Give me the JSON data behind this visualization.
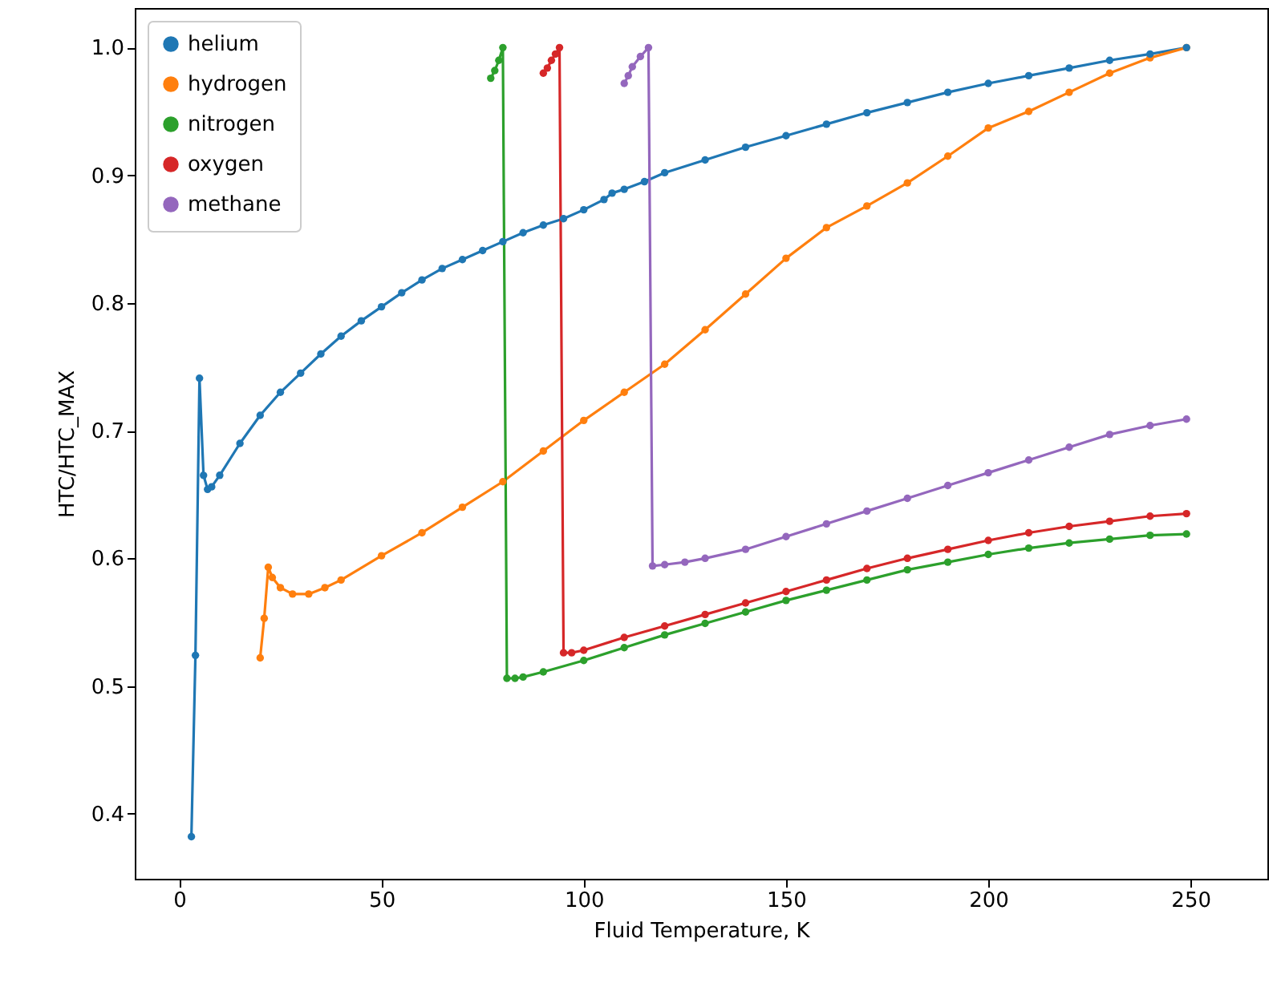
{
  "chart_data": {
    "type": "line",
    "xlabel": "Fluid Temperature, K",
    "ylabel": "HTC/HTC_MAX",
    "xlim": [
      -11,
      269
    ],
    "xticks": [
      0,
      50,
      100,
      150,
      200,
      250
    ],
    "ylim": [
      0.349,
      1.031
    ],
    "yticks": [
      0.4,
      0.5,
      0.6,
      0.7,
      0.8,
      0.9,
      {
        "value": 1,
        "label": "1.0"
      }
    ],
    "grid": false,
    "legend": "top left",
    "marker": "circle",
    "line_style": "solid",
    "series": [
      {
        "name": "helium",
        "color": "#1f77b4",
        "x": [
          3,
          4,
          5,
          6,
          7,
          8,
          10,
          15,
          20,
          25,
          30,
          35,
          40,
          45,
          50,
          55,
          60,
          65,
          70,
          75,
          80,
          85,
          90,
          95,
          100,
          105,
          107,
          110,
          115,
          120,
          130,
          140,
          150,
          160,
          170,
          180,
          190,
          200,
          210,
          220,
          230,
          240,
          249
        ],
        "values": [
          0.382,
          0.524,
          0.741,
          0.665,
          0.654,
          0.656,
          0.665,
          0.69,
          0.712,
          0.73,
          0.745,
          0.76,
          0.774,
          0.786,
          0.797,
          0.808,
          0.818,
          0.827,
          0.834,
          0.841,
          0.848,
          0.855,
          0.861,
          0.866,
          0.873,
          0.881,
          0.886,
          0.889,
          0.895,
          0.902,
          0.912,
          0.922,
          0.931,
          0.94,
          0.949,
          0.957,
          0.965,
          0.972,
          0.978,
          0.984,
          0.99,
          0.995,
          1.0
        ]
      },
      {
        "name": "hydrogen",
        "color": "#ff7f0e",
        "x": [
          20,
          21,
          22,
          23,
          25,
          28,
          32,
          36,
          40,
          50,
          60,
          70,
          80,
          90,
          100,
          110,
          120,
          130,
          140,
          150,
          160,
          170,
          180,
          190,
          200,
          210,
          220,
          230,
          240,
          249
        ],
        "values": [
          0.522,
          0.553,
          0.593,
          0.585,
          0.577,
          0.572,
          0.572,
          0.577,
          0.583,
          0.602,
          0.62,
          0.64,
          0.66,
          0.684,
          0.708,
          0.73,
          0.752,
          0.779,
          0.807,
          0.835,
          0.859,
          0.876,
          0.894,
          0.915,
          0.937,
          0.95,
          0.965,
          0.98,
          0.992,
          1.0
        ]
      },
      {
        "name": "nitrogen",
        "color": "#2ca02c",
        "x": [
          77,
          78,
          79,
          80,
          81,
          83,
          85,
          90,
          100,
          110,
          120,
          130,
          140,
          150,
          160,
          170,
          180,
          190,
          200,
          210,
          220,
          230,
          240,
          249
        ],
        "values": [
          0.976,
          0.982,
          0.99,
          1.0,
          0.506,
          0.506,
          0.507,
          0.511,
          0.52,
          0.53,
          0.54,
          0.549,
          0.558,
          0.567,
          0.575,
          0.583,
          0.591,
          0.597,
          0.603,
          0.608,
          0.612,
          0.615,
          0.618,
          0.619
        ]
      },
      {
        "name": "oxygen",
        "color": "#d62728",
        "x": [
          90,
          91,
          92,
          93,
          94,
          95,
          97,
          100,
          110,
          120,
          130,
          140,
          150,
          160,
          170,
          180,
          190,
          200,
          210,
          220,
          230,
          240,
          249
        ],
        "values": [
          0.98,
          0.984,
          0.99,
          0.995,
          1.0,
          0.526,
          0.526,
          0.528,
          0.538,
          0.547,
          0.556,
          0.565,
          0.574,
          0.583,
          0.592,
          0.6,
          0.607,
          0.614,
          0.62,
          0.625,
          0.629,
          0.633,
          0.635
        ]
      },
      {
        "name": "methane",
        "color": "#9467bd",
        "x": [
          110,
          111,
          112,
          114,
          116,
          117,
          120,
          125,
          130,
          140,
          150,
          160,
          170,
          180,
          190,
          200,
          210,
          220,
          230,
          240,
          249
        ],
        "values": [
          0.972,
          0.978,
          0.985,
          0.993,
          1.0,
          0.594,
          0.595,
          0.597,
          0.6,
          0.607,
          0.617,
          0.627,
          0.637,
          0.647,
          0.657,
          0.667,
          0.677,
          0.687,
          0.697,
          0.704,
          0.709
        ]
      }
    ]
  }
}
